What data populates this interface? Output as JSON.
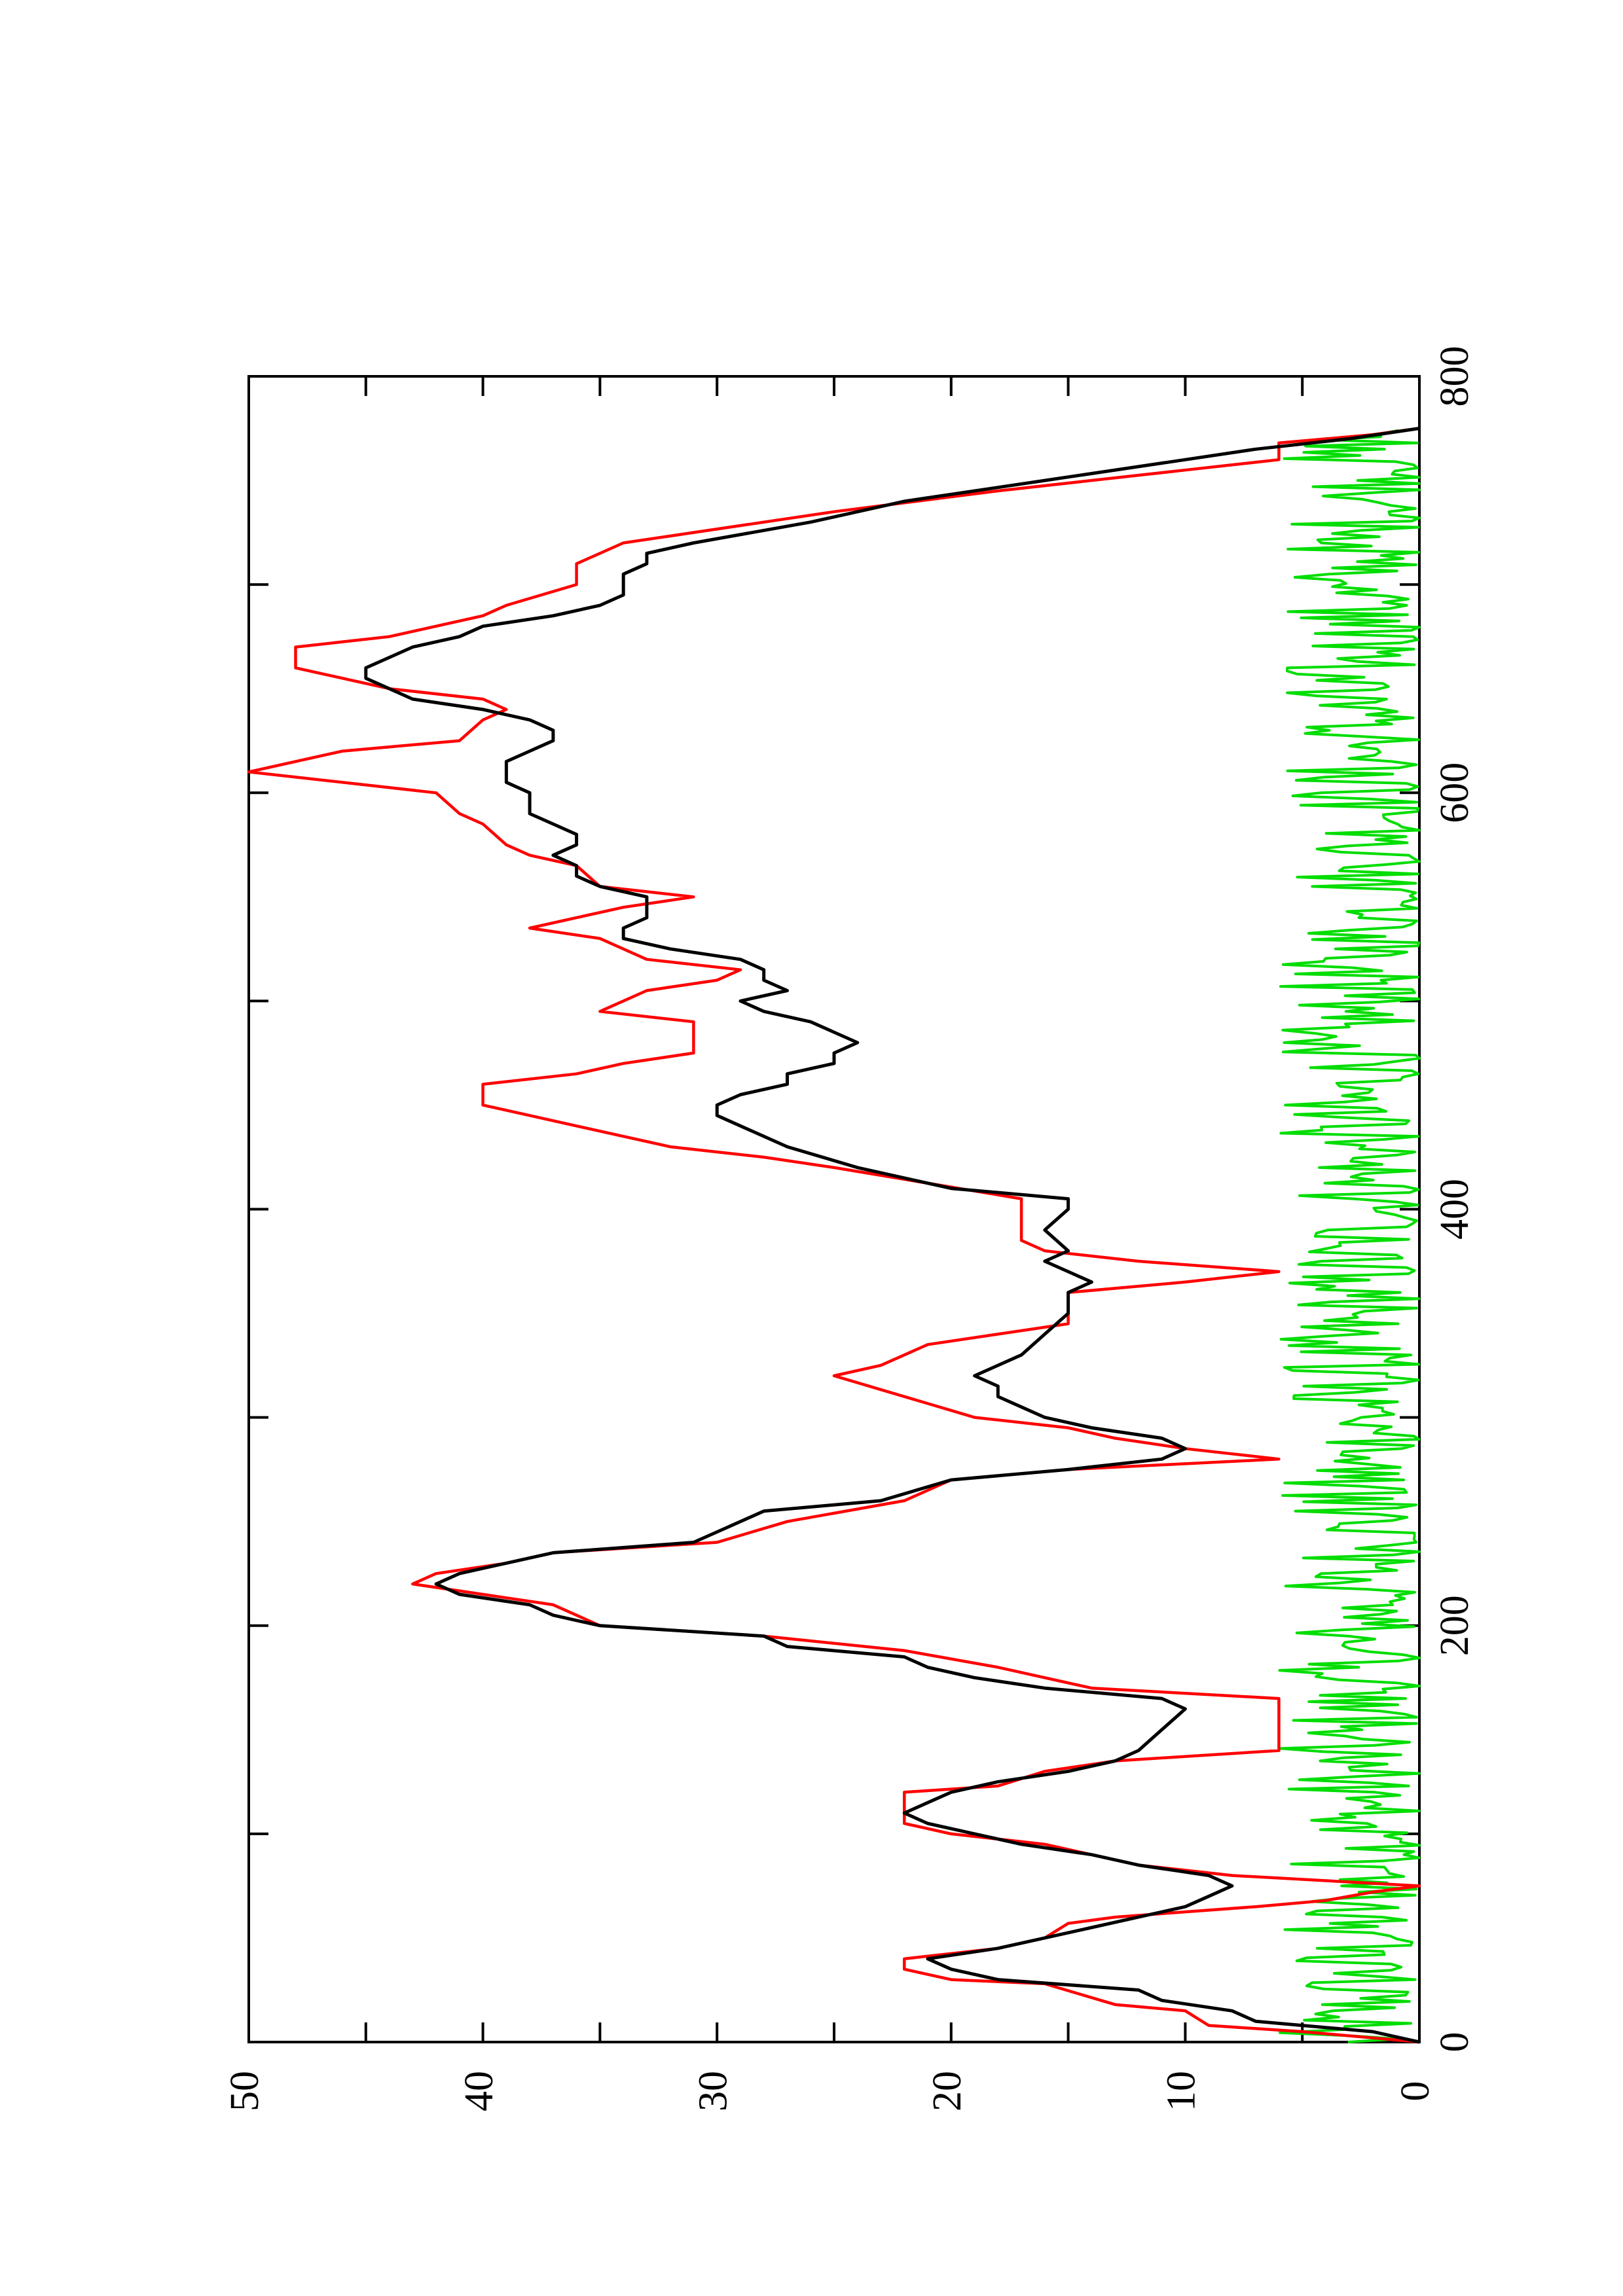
{
  "chart_data": {
    "type": "line",
    "orientation": "rotated 90 degrees counter-clockwise (page landscape)",
    "title": "",
    "xlabel": "",
    "ylabel": "",
    "xlim": [
      0,
      800
    ],
    "ylim": [
      0,
      50
    ],
    "x_ticks": [
      "0",
      "200",
      "400",
      "600",
      "800"
    ],
    "y_ticks": [
      "0",
      "10",
      "20",
      "30",
      "40",
      "50"
    ],
    "grid": false,
    "legend": "none",
    "series": [
      {
        "color": "#ff0000",
        "style": "step",
        "points": [
          [
            0,
            0
          ],
          [
            5,
            5
          ],
          [
            8,
            9
          ],
          [
            15,
            10
          ],
          [
            18,
            13
          ],
          [
            28,
            16
          ],
          [
            30,
            20
          ],
          [
            35,
            22
          ],
          [
            40,
            22
          ],
          [
            45,
            18
          ],
          [
            50,
            16
          ],
          [
            57,
            15
          ],
          [
            60,
            13
          ],
          [
            65,
            7
          ],
          [
            68,
            4
          ],
          [
            72,
            2
          ],
          [
            75,
            0
          ],
          [
            80,
            8
          ],
          [
            85,
            12
          ],
          [
            90,
            14
          ],
          [
            95,
            16
          ],
          [
            100,
            20
          ],
          [
            105,
            22
          ],
          [
            120,
            22
          ],
          [
            123,
            18
          ],
          [
            130,
            16
          ],
          [
            135,
            13
          ],
          [
            140,
            6
          ],
          [
            165,
            6
          ],
          [
            170,
            14
          ],
          [
            180,
            18
          ],
          [
            188,
            22
          ],
          [
            195,
            28
          ],
          [
            200,
            35
          ],
          [
            210,
            37
          ],
          [
            215,
            40
          ],
          [
            220,
            43
          ],
          [
            225,
            42
          ],
          [
            230,
            39
          ],
          [
            235,
            37
          ],
          [
            240,
            30
          ],
          [
            250,
            27
          ],
          [
            260,
            22
          ],
          [
            270,
            20
          ],
          [
            275,
            15
          ],
          [
            280,
            6
          ],
          [
            285,
            10
          ],
          [
            290,
            13
          ],
          [
            295,
            15
          ],
          [
            300,
            19
          ],
          [
            310,
            22
          ],
          [
            320,
            25
          ],
          [
            325,
            23
          ],
          [
            335,
            21
          ],
          [
            340,
            18
          ],
          [
            345,
            15
          ],
          [
            360,
            15
          ],
          [
            365,
            10
          ],
          [
            370,
            6
          ],
          [
            375,
            12
          ],
          [
            380,
            16
          ],
          [
            385,
            17
          ],
          [
            405,
            17
          ],
          [
            420,
            25
          ],
          [
            425,
            28
          ],
          [
            430,
            32
          ],
          [
            440,
            36
          ],
          [
            450,
            40
          ],
          [
            460,
            40
          ],
          [
            465,
            36
          ],
          [
            470,
            34
          ],
          [
            475,
            31
          ],
          [
            490,
            31
          ],
          [
            495,
            35
          ],
          [
            505,
            33
          ],
          [
            510,
            30
          ],
          [
            515,
            29
          ],
          [
            520,
            33
          ],
          [
            530,
            35
          ],
          [
            535,
            38
          ],
          [
            540,
            36
          ],
          [
            545,
            34
          ],
          [
            550,
            31
          ],
          [
            555,
            35
          ],
          [
            565,
            36
          ],
          [
            570,
            38
          ],
          [
            575,
            39
          ],
          [
            585,
            40
          ],
          [
            590,
            41
          ],
          [
            600,
            42
          ],
          [
            610,
            50
          ],
          [
            620,
            46
          ],
          [
            625,
            41
          ],
          [
            635,
            40
          ],
          [
            640,
            39
          ],
          [
            645,
            40
          ],
          [
            650,
            44
          ],
          [
            660,
            48
          ],
          [
            670,
            48
          ],
          [
            675,
            44
          ],
          [
            685,
            40
          ],
          [
            690,
            39
          ],
          [
            700,
            36
          ],
          [
            710,
            36
          ],
          [
            720,
            34
          ],
          [
            735,
            25
          ],
          [
            745,
            18
          ],
          [
            755,
            10
          ],
          [
            760,
            6
          ],
          [
            768,
            6
          ],
          [
            772,
            2
          ],
          [
            775,
            0
          ]
        ]
      },
      {
        "color": "#000000",
        "style": "line",
        "points": [
          [
            0,
            0
          ],
          [
            5,
            2
          ],
          [
            8,
            5
          ],
          [
            10,
            7
          ],
          [
            15,
            8
          ],
          [
            20,
            11
          ],
          [
            25,
            12
          ],
          [
            30,
            18
          ],
          [
            35,
            20
          ],
          [
            40,
            21
          ],
          [
            45,
            18
          ],
          [
            50,
            16
          ],
          [
            55,
            14
          ],
          [
            60,
            12
          ],
          [
            65,
            10
          ],
          [
            70,
            9
          ],
          [
            75,
            8
          ],
          [
            80,
            9
          ],
          [
            85,
            12
          ],
          [
            90,
            14
          ],
          [
            95,
            17
          ],
          [
            100,
            19
          ],
          [
            105,
            21
          ],
          [
            110,
            22
          ],
          [
            115,
            21
          ],
          [
            120,
            20
          ],
          [
            125,
            18
          ],
          [
            130,
            15
          ],
          [
            135,
            13
          ],
          [
            140,
            12
          ],
          [
            150,
            11
          ],
          [
            160,
            10
          ],
          [
            165,
            11
          ],
          [
            170,
            16
          ],
          [
            175,
            19
          ],
          [
            180,
            21
          ],
          [
            185,
            22
          ],
          [
            190,
            27
          ],
          [
            195,
            28
          ],
          [
            200,
            35
          ],
          [
            205,
            37
          ],
          [
            210,
            38
          ],
          [
            215,
            41
          ],
          [
            220,
            42
          ],
          [
            225,
            41
          ],
          [
            230,
            39
          ],
          [
            235,
            37
          ],
          [
            240,
            31
          ],
          [
            245,
            30
          ],
          [
            250,
            29
          ],
          [
            255,
            28
          ],
          [
            260,
            23
          ],
          [
            270,
            20
          ],
          [
            275,
            15
          ],
          [
            280,
            11
          ],
          [
            285,
            10
          ],
          [
            290,
            11
          ],
          [
            295,
            14
          ],
          [
            300,
            16
          ],
          [
            305,
            17
          ],
          [
            310,
            18
          ],
          [
            315,
            18
          ],
          [
            320,
            19
          ],
          [
            325,
            18
          ],
          [
            330,
            17
          ],
          [
            340,
            16
          ],
          [
            350,
            15
          ],
          [
            360,
            15
          ],
          [
            365,
            14
          ],
          [
            370,
            15
          ],
          [
            375,
            16
          ],
          [
            380,
            15
          ],
          [
            390,
            16
          ],
          [
            400,
            15
          ],
          [
            405,
            15
          ],
          [
            410,
            20
          ],
          [
            420,
            24
          ],
          [
            430,
            27
          ],
          [
            440,
            29
          ],
          [
            445,
            30
          ],
          [
            450,
            30
          ],
          [
            455,
            29
          ],
          [
            460,
            27
          ],
          [
            465,
            27
          ],
          [
            470,
            25
          ],
          [
            475,
            25
          ],
          [
            480,
            24
          ],
          [
            485,
            25
          ],
          [
            490,
            26
          ],
          [
            495,
            28
          ],
          [
            500,
            29
          ],
          [
            505,
            27
          ],
          [
            510,
            28
          ],
          [
            515,
            28
          ],
          [
            520,
            29
          ],
          [
            525,
            32
          ],
          [
            530,
            34
          ],
          [
            535,
            34
          ],
          [
            540,
            33
          ],
          [
            545,
            33
          ],
          [
            550,
            33
          ],
          [
            555,
            35
          ],
          [
            560,
            36
          ],
          [
            565,
            36
          ],
          [
            570,
            37
          ],
          [
            575,
            36
          ],
          [
            580,
            36
          ],
          [
            585,
            37
          ],
          [
            590,
            38
          ],
          [
            595,
            38
          ],
          [
            600,
            38
          ],
          [
            605,
            39
          ],
          [
            610,
            39
          ],
          [
            615,
            39
          ],
          [
            620,
            38
          ],
          [
            625,
            37
          ],
          [
            630,
            37
          ],
          [
            635,
            38
          ],
          [
            640,
            40
          ],
          [
            645,
            43
          ],
          [
            650,
            44
          ],
          [
            655,
            45
          ],
          [
            660,
            45
          ],
          [
            665,
            44
          ],
          [
            670,
            43
          ],
          [
            675,
            41
          ],
          [
            680,
            40
          ],
          [
            685,
            37
          ],
          [
            690,
            35
          ],
          [
            695,
            34
          ],
          [
            700,
            34
          ],
          [
            705,
            34
          ],
          [
            710,
            33
          ],
          [
            715,
            33
          ],
          [
            720,
            31
          ],
          [
            730,
            26
          ],
          [
            740,
            22
          ],
          [
            750,
            16
          ],
          [
            760,
            10
          ],
          [
            765,
            7
          ],
          [
            770,
            3
          ],
          [
            775,
            0
          ]
        ]
      },
      {
        "color": "#00dd00",
        "style": "noise",
        "amplitude_max": 6,
        "x_range": [
          0,
          775
        ]
      }
    ]
  }
}
